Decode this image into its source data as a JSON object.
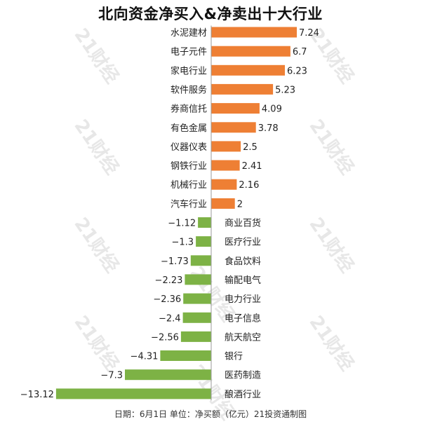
{
  "title": "北向资金净买入&净卖出十大行业",
  "footer": "日期：6月1日 单位：净买额（亿元）21投资通制图",
  "watermark": "21财经",
  "colors": {
    "positive": "#EE7F34",
    "negative": "#7DB245",
    "axis": "#999999"
  },
  "chart_data": {
    "type": "bar",
    "orientation": "horizontal",
    "categories": [
      "水泥建材",
      "电子元件",
      "家电行业",
      "软件服务",
      "券商信托",
      "有色金属",
      "仪器仪表",
      "钢铁行业",
      "机械行业",
      "汽车行业",
      "商业百货",
      "医疗行业",
      "食品饮料",
      "输配电气",
      "电力行业",
      "电子信息",
      "航天航空",
      "银行",
      "医药制造",
      "酿酒行业"
    ],
    "values": [
      7.24,
      6.7,
      6.23,
      5.23,
      4.09,
      3.78,
      2.5,
      2.41,
      2.16,
      2,
      -1.12,
      -1.3,
      -1.73,
      -2.23,
      -2.36,
      -2.4,
      -2.56,
      -4.31,
      -7.3,
      -13.12
    ],
    "value_labels": [
      "7.24",
      "6.7",
      "6.23",
      "5.23",
      "4.09",
      "3.78",
      "2.5",
      "2.41",
      "2.16",
      "2",
      "−1.12",
      "−1.3",
      "−1.73",
      "−2.23",
      "−2.36",
      "−2.4",
      "−2.56",
      "−4.31",
      "−7.3",
      "−13.12"
    ],
    "xlim": [
      -13.12,
      7.24
    ],
    "grid": false,
    "legend": "none"
  }
}
